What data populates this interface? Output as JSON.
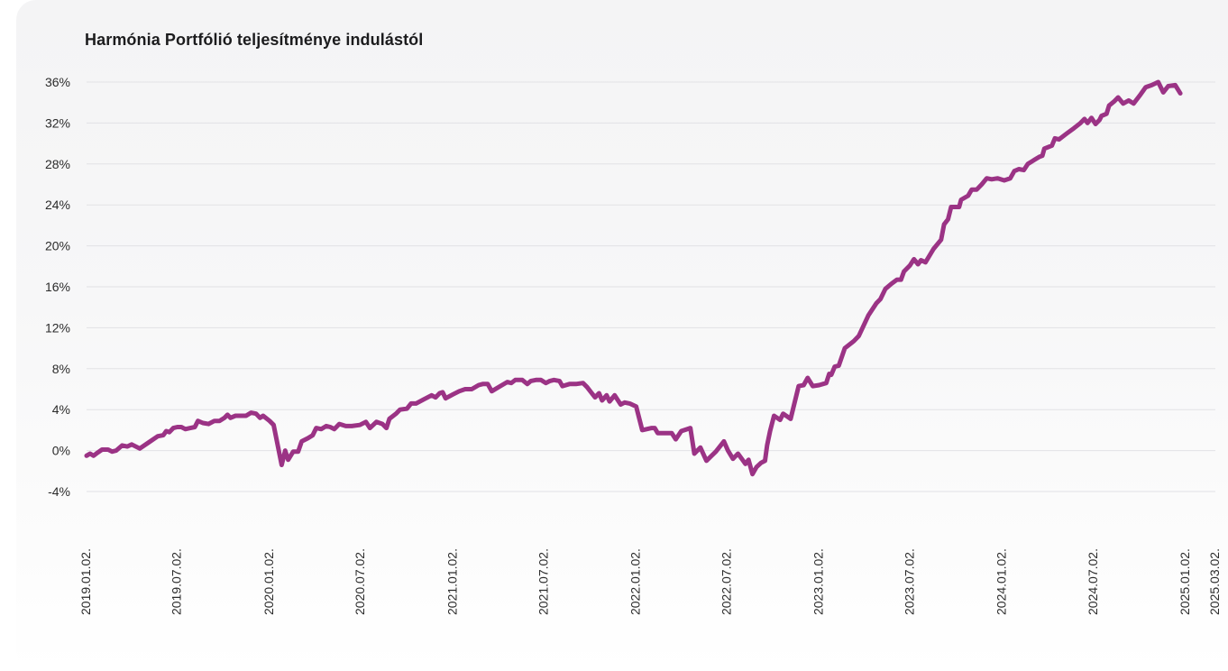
{
  "chart_data": {
    "type": "line",
    "title": "Harmónia Portfólió teljesítménye indulástól",
    "xlabel": "",
    "ylabel": "",
    "ylim": [
      -4,
      36
    ],
    "y_tick_values": [
      -4,
      0,
      4,
      8,
      12,
      16,
      20,
      24,
      28,
      32,
      36
    ],
    "y_tick_labels": [
      "-4%",
      "0%",
      "4%",
      "8%",
      "12%",
      "16%",
      "20%",
      "24%",
      "28%",
      "32%",
      "36%"
    ],
    "x_tick_labels": [
      "2019.01.02.",
      "2019.07.02.",
      "2020.01.02.",
      "2020.07.02.",
      "2021.01.02.",
      "2021.07.02.",
      "2022.01.02.",
      "2022.07.02.",
      "2023.01.02.",
      "2023.07.02.",
      "2024.01.02.",
      "2024.07.02.",
      "2025.01.02.",
      "2025.03.02."
    ],
    "x_tick_dates": [
      "2019-01-02",
      "2019-07-02",
      "2020-01-02",
      "2020-07-02",
      "2021-01-02",
      "2021-07-02",
      "2022-01-02",
      "2022-07-02",
      "2023-01-02",
      "2023-07-02",
      "2024-01-02",
      "2024-07-02",
      "2025-01-02",
      "2025-03-02"
    ],
    "grid": true,
    "legend": "none",
    "series": [
      {
        "color": "#9b3385",
        "points": [
          [
            "2019-01-02",
            -0.5
          ],
          [
            "2019-01-09",
            -0.3
          ],
          [
            "2019-01-16",
            -0.5
          ],
          [
            "2019-01-24",
            -0.2
          ],
          [
            "2019-02-02",
            0.1
          ],
          [
            "2019-02-14",
            0.1
          ],
          [
            "2019-02-22",
            -0.1
          ],
          [
            "2019-03-02",
            0.0
          ],
          [
            "2019-03-14",
            0.5
          ],
          [
            "2019-03-24",
            0.4
          ],
          [
            "2019-04-02",
            0.6
          ],
          [
            "2019-04-18",
            0.2
          ],
          [
            "2019-05-06",
            0.8
          ],
          [
            "2019-05-24",
            1.4
          ],
          [
            "2019-06-04",
            1.5
          ],
          [
            "2019-06-10",
            1.9
          ],
          [
            "2019-06-16",
            1.8
          ],
          [
            "2019-06-24",
            2.2
          ],
          [
            "2019-07-02",
            2.3
          ],
          [
            "2019-07-10",
            2.3
          ],
          [
            "2019-07-18",
            2.1
          ],
          [
            "2019-07-28",
            2.2
          ],
          [
            "2019-08-06",
            2.3
          ],
          [
            "2019-08-12",
            2.9
          ],
          [
            "2019-08-22",
            2.7
          ],
          [
            "2019-09-02",
            2.6
          ],
          [
            "2019-09-14",
            2.9
          ],
          [
            "2019-09-24",
            2.9
          ],
          [
            "2019-10-04",
            3.2
          ],
          [
            "2019-10-10",
            3.5
          ],
          [
            "2019-10-16",
            3.2
          ],
          [
            "2019-10-26",
            3.4
          ],
          [
            "2019-11-06",
            3.4
          ],
          [
            "2019-11-16",
            3.4
          ],
          [
            "2019-11-26",
            3.7
          ],
          [
            "2019-12-06",
            3.6
          ],
          [
            "2019-12-14",
            3.2
          ],
          [
            "2019-12-20",
            3.4
          ],
          [
            "2020-01-02",
            2.9
          ],
          [
            "2020-01-10",
            2.5
          ],
          [
            "2020-01-26",
            -1.4
          ],
          [
            "2020-02-02",
            0.0
          ],
          [
            "2020-02-08",
            -0.9
          ],
          [
            "2020-02-18",
            -0.1
          ],
          [
            "2020-02-28",
            -0.1
          ],
          [
            "2020-03-06",
            0.9
          ],
          [
            "2020-03-18",
            1.2
          ],
          [
            "2020-03-28",
            1.5
          ],
          [
            "2020-04-04",
            2.2
          ],
          [
            "2020-04-14",
            2.1
          ],
          [
            "2020-04-24",
            2.4
          ],
          [
            "2020-05-02",
            2.3
          ],
          [
            "2020-05-10",
            2.1
          ],
          [
            "2020-05-20",
            2.6
          ],
          [
            "2020-06-02",
            2.4
          ],
          [
            "2020-06-14",
            2.4
          ],
          [
            "2020-06-30",
            2.5
          ],
          [
            "2020-07-12",
            2.8
          ],
          [
            "2020-07-20",
            2.2
          ],
          [
            "2020-08-02",
            2.8
          ],
          [
            "2020-08-14",
            2.6
          ],
          [
            "2020-08-22",
            2.2
          ],
          [
            "2020-08-28",
            3.1
          ],
          [
            "2020-09-10",
            3.6
          ],
          [
            "2020-09-18",
            4.0
          ],
          [
            "2020-10-02",
            4.1
          ],
          [
            "2020-10-10",
            4.6
          ],
          [
            "2020-10-20",
            4.6
          ],
          [
            "2020-11-04",
            5.0
          ],
          [
            "2020-11-20",
            5.4
          ],
          [
            "2020-11-28",
            5.2
          ],
          [
            "2020-12-06",
            5.6
          ],
          [
            "2020-12-12",
            5.7
          ],
          [
            "2020-12-18",
            5.1
          ],
          [
            "2021-01-02",
            5.5
          ],
          [
            "2021-01-14",
            5.8
          ],
          [
            "2021-01-26",
            6.0
          ],
          [
            "2021-02-08",
            6.0
          ],
          [
            "2021-02-22",
            6.4
          ],
          [
            "2021-03-02",
            6.5
          ],
          [
            "2021-03-12",
            6.5
          ],
          [
            "2021-03-20",
            5.8
          ],
          [
            "2021-04-06",
            6.3
          ],
          [
            "2021-04-20",
            6.7
          ],
          [
            "2021-04-28",
            6.6
          ],
          [
            "2021-05-06",
            6.9
          ],
          [
            "2021-05-20",
            6.9
          ],
          [
            "2021-05-30",
            6.5
          ],
          [
            "2021-06-06",
            6.8
          ],
          [
            "2021-06-16",
            6.9
          ],
          [
            "2021-06-26",
            6.9
          ],
          [
            "2021-07-06",
            6.6
          ],
          [
            "2021-07-14",
            6.8
          ],
          [
            "2021-07-22",
            6.9
          ],
          [
            "2021-08-02",
            6.8
          ],
          [
            "2021-08-08",
            6.3
          ],
          [
            "2021-08-22",
            6.5
          ],
          [
            "2021-09-04",
            6.5
          ],
          [
            "2021-09-18",
            6.6
          ],
          [
            "2021-09-26",
            6.2
          ],
          [
            "2021-10-04",
            5.7
          ],
          [
            "2021-10-12",
            5.2
          ],
          [
            "2021-10-20",
            5.6
          ],
          [
            "2021-10-26",
            4.9
          ],
          [
            "2021-11-04",
            5.4
          ],
          [
            "2021-11-10",
            4.8
          ],
          [
            "2021-11-20",
            5.4
          ],
          [
            "2021-12-02",
            4.5
          ],
          [
            "2021-12-10",
            4.7
          ],
          [
            "2021-12-20",
            4.6
          ],
          [
            "2022-01-02",
            4.3
          ],
          [
            "2022-01-14",
            2.0
          ],
          [
            "2022-02-02",
            2.2
          ],
          [
            "2022-02-08",
            2.2
          ],
          [
            "2022-02-14",
            1.7
          ],
          [
            "2022-02-26",
            1.7
          ],
          [
            "2022-03-14",
            1.7
          ],
          [
            "2022-03-22",
            1.1
          ],
          [
            "2022-04-02",
            1.9
          ],
          [
            "2022-04-14",
            2.1
          ],
          [
            "2022-04-20",
            2.2
          ],
          [
            "2022-04-28",
            -0.3
          ],
          [
            "2022-05-10",
            0.3
          ],
          [
            "2022-05-22",
            -1.0
          ],
          [
            "2022-06-10",
            -0.1
          ],
          [
            "2022-06-26",
            0.9
          ],
          [
            "2022-07-04",
            0.0
          ],
          [
            "2022-07-14",
            -0.8
          ],
          [
            "2022-07-24",
            -0.3
          ],
          [
            "2022-08-02",
            -0.9
          ],
          [
            "2022-08-08",
            -1.3
          ],
          [
            "2022-08-14",
            -0.9
          ],
          [
            "2022-08-22",
            -2.3
          ],
          [
            "2022-08-30",
            -1.6
          ],
          [
            "2022-09-08",
            -1.2
          ],
          [
            "2022-09-16",
            -1.0
          ],
          [
            "2022-09-20",
            0.5
          ],
          [
            "2022-09-26",
            1.9
          ],
          [
            "2022-10-04",
            3.4
          ],
          [
            "2022-10-16",
            3.0
          ],
          [
            "2022-10-22",
            3.6
          ],
          [
            "2022-11-06",
            3.1
          ],
          [
            "2022-11-22",
            6.3
          ],
          [
            "2022-12-02",
            6.4
          ],
          [
            "2022-12-10",
            7.1
          ],
          [
            "2022-12-20",
            6.3
          ],
          [
            "2023-01-02",
            6.4
          ],
          [
            "2023-01-16",
            6.6
          ],
          [
            "2023-01-22",
            7.5
          ],
          [
            "2023-01-26",
            7.4
          ],
          [
            "2023-02-02",
            8.2
          ],
          [
            "2023-02-10",
            8.3
          ],
          [
            "2023-02-22",
            10.0
          ],
          [
            "2023-03-12",
            10.7
          ],
          [
            "2023-03-22",
            11.2
          ],
          [
            "2023-04-10",
            13.2
          ],
          [
            "2023-04-26",
            14.4
          ],
          [
            "2023-05-04",
            14.8
          ],
          [
            "2023-05-14",
            15.8
          ],
          [
            "2023-05-26",
            16.3
          ],
          [
            "2023-06-06",
            16.7
          ],
          [
            "2023-06-14",
            16.7
          ],
          [
            "2023-06-20",
            17.5
          ],
          [
            "2023-07-02",
            18.1
          ],
          [
            "2023-07-10",
            18.7
          ],
          [
            "2023-07-18",
            18.2
          ],
          [
            "2023-07-24",
            18.6
          ],
          [
            "2023-08-02",
            18.4
          ],
          [
            "2023-08-18",
            19.7
          ],
          [
            "2023-09-02",
            20.6
          ],
          [
            "2023-09-08",
            22.1
          ],
          [
            "2023-09-16",
            22.6
          ],
          [
            "2023-09-22",
            23.8
          ],
          [
            "2023-10-08",
            23.8
          ],
          [
            "2023-10-12",
            24.5
          ],
          [
            "2023-10-26",
            24.9
          ],
          [
            "2023-11-02",
            25.5
          ],
          [
            "2023-11-12",
            25.5
          ],
          [
            "2023-11-22",
            26.0
          ],
          [
            "2023-12-02",
            26.6
          ],
          [
            "2023-12-12",
            26.5
          ],
          [
            "2023-12-24",
            26.6
          ],
          [
            "2024-01-06",
            26.4
          ],
          [
            "2024-01-18",
            26.6
          ],
          [
            "2024-01-26",
            27.3
          ],
          [
            "2024-02-04",
            27.5
          ],
          [
            "2024-02-14",
            27.4
          ],
          [
            "2024-02-22",
            28.0
          ],
          [
            "2024-03-06",
            28.4
          ],
          [
            "2024-03-16",
            28.7
          ],
          [
            "2024-03-22",
            28.8
          ],
          [
            "2024-03-26",
            29.5
          ],
          [
            "2024-04-10",
            29.8
          ],
          [
            "2024-04-16",
            30.5
          ],
          [
            "2024-04-24",
            30.4
          ],
          [
            "2024-05-10",
            31.0
          ],
          [
            "2024-05-24",
            31.5
          ],
          [
            "2024-06-06",
            32.0
          ],
          [
            "2024-06-14",
            32.4
          ],
          [
            "2024-06-20",
            32.0
          ],
          [
            "2024-06-28",
            32.5
          ],
          [
            "2024-07-06",
            31.9
          ],
          [
            "2024-07-14",
            32.3
          ],
          [
            "2024-07-18",
            32.7
          ],
          [
            "2024-07-28",
            32.9
          ],
          [
            "2024-08-02",
            33.7
          ],
          [
            "2024-08-12",
            34.1
          ],
          [
            "2024-08-20",
            34.5
          ],
          [
            "2024-08-30",
            33.9
          ],
          [
            "2024-09-10",
            34.2
          ],
          [
            "2024-09-20",
            33.9
          ],
          [
            "2024-10-04",
            34.8
          ],
          [
            "2024-10-14",
            35.5
          ],
          [
            "2024-10-26",
            35.7
          ],
          [
            "2024-11-08",
            36.0
          ],
          [
            "2024-11-18",
            35.0
          ],
          [
            "2024-11-28",
            35.6
          ],
          [
            "2024-12-12",
            35.7
          ],
          [
            "2024-12-22",
            34.9
          ]
        ]
      }
    ]
  }
}
